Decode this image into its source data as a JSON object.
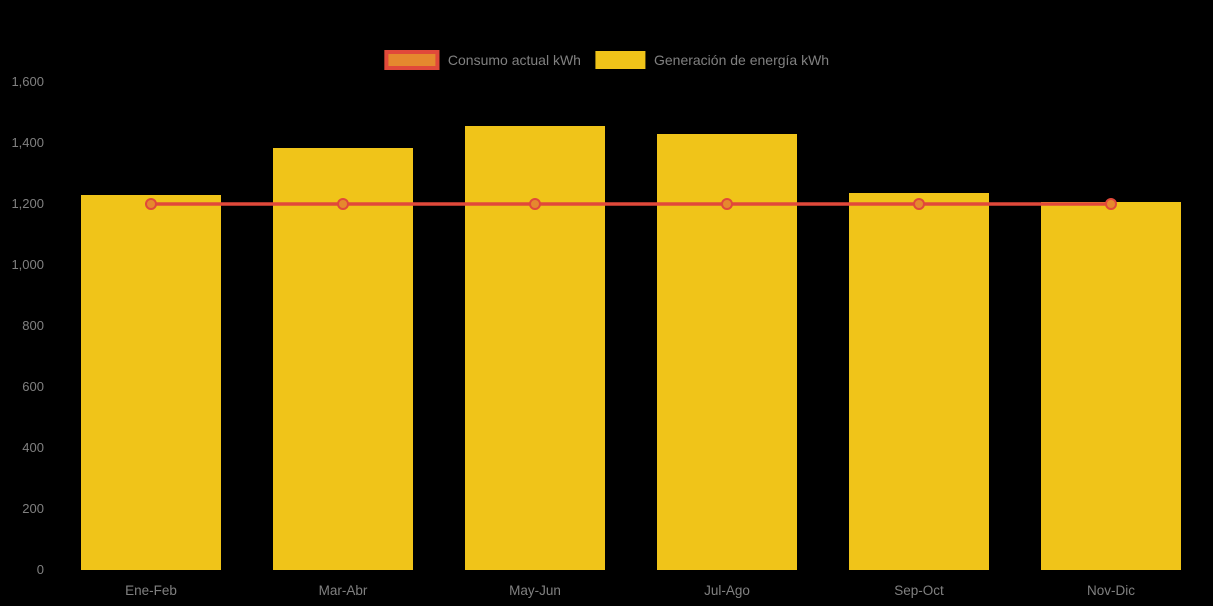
{
  "chart_data": {
    "type": "bar",
    "categories": [
      "Ene-Feb",
      "Mar-Abr",
      "May-Jun",
      "Jul-Ago",
      "Sep-Oct",
      "Nov-Dic"
    ],
    "series": [
      {
        "name": "Consumo actual kWh",
        "type": "line",
        "color": "#E1493A",
        "marker_fill": "#E5892E",
        "values": [
          1200,
          1200,
          1200,
          1200,
          1200,
          1200
        ]
      },
      {
        "name": "Generación de energía kWh",
        "type": "bar",
        "color": "#F0C419",
        "values": [
          1230,
          1385,
          1455,
          1430,
          1235,
          1205
        ]
      }
    ],
    "title": "",
    "xlabel": "",
    "ylabel": "",
    "ylim": [
      0,
      1600
    ],
    "ytick_step": 200,
    "ytick_labels": [
      "0",
      "200",
      "400",
      "600",
      "800",
      "1,000",
      "1,200",
      "1,400",
      "1,600"
    ],
    "grid": false,
    "legend_position": "top-center",
    "background_color": "#000000",
    "text_color": "#808080"
  }
}
